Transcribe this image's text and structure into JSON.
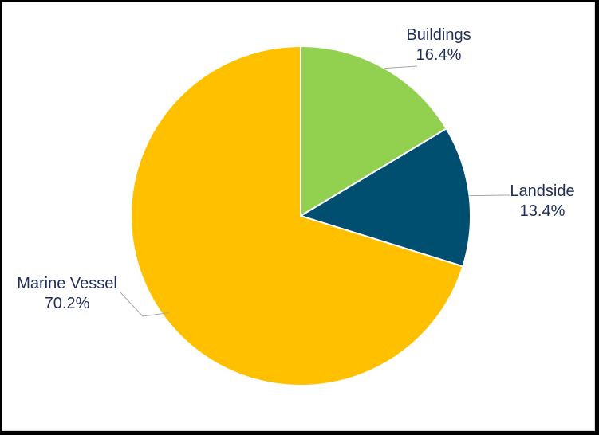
{
  "chart_data": {
    "type": "pie",
    "title": "",
    "categories": [
      "Buildings",
      "Landside",
      "Marine Vessel"
    ],
    "values": [
      16.4,
      13.4,
      70.2
    ],
    "unit": "%",
    "value_labels": [
      "16.4%",
      "13.4%",
      "70.2%"
    ],
    "colors": [
      "#92d050",
      "#004f71",
      "#ffc000"
    ],
    "slice_border_color": "#ffffff",
    "label_color": "#1f2d5a",
    "legend": "none"
  }
}
